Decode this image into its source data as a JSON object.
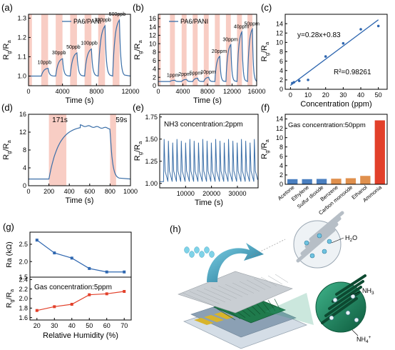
{
  "colors": {
    "line": "#3b6fa8",
    "shade": "#f8cdc4",
    "axis": "#000000",
    "humidity_line": "#2f67b0",
    "bar_blue": "#4a7fc0",
    "bar_orange": "#e0904d",
    "bar_red": "#e2402a",
    "fit_line": "#2f67b0",
    "points": "#2f67b0"
  },
  "chart_data": [
    {
      "panel": "(a)",
      "type": "line",
      "legend": "PA6/PANI",
      "xlabel": "Time (s)",
      "ylabel": "Rg/Ra",
      "xlim": [
        0,
        12000
      ],
      "ylim": [
        0.95,
        1.32
      ],
      "xticks": [
        0,
        4000,
        8000,
        12000
      ],
      "yticks": [
        1.0,
        1.1,
        1.2,
        1.3
      ],
      "annotations": [
        "10ppb",
        "30ppb",
        "50ppb",
        "100ppb",
        "300ppb",
        "500ppb"
      ],
      "peaks": [
        {
          "label": "10ppb",
          "start": 1500,
          "end": 2300,
          "peak": 1.04
        },
        {
          "label": "30ppb",
          "start": 3200,
          "end": 4000,
          "peak": 1.09
        },
        {
          "label": "50ppb",
          "start": 4900,
          "end": 5700,
          "peak": 1.12
        },
        {
          "label": "100ppb",
          "start": 6600,
          "end": 7400,
          "peak": 1.14
        },
        {
          "label": "300ppb",
          "start": 8200,
          "end": 9000,
          "peak": 1.26
        },
        {
          "label": "500ppb",
          "start": 9900,
          "end": 10700,
          "peak": 1.29
        }
      ],
      "shaded_regions": [
        [
          0,
          400
        ],
        [
          1500,
          2300
        ],
        [
          3200,
          4000
        ],
        [
          4900,
          5700
        ],
        [
          6600,
          7400
        ],
        [
          8200,
          9000
        ],
        [
          9900,
          10700
        ]
      ]
    },
    {
      "panel": "(b)",
      "type": "line",
      "legend": "PA6/PANI",
      "xlabel": "Time (s)",
      "ylabel": "Rg/Ra",
      "xlim": [
        0,
        16000
      ],
      "ylim": [
        0,
        17
      ],
      "xticks": [
        0,
        4000,
        8000,
        12000,
        16000
      ],
      "yticks": [
        0,
        2,
        4,
        6,
        8,
        10,
        12,
        14,
        16
      ],
      "annotations": [
        "1ppm",
        "2ppm",
        "5ppm",
        "10ppm",
        "20ppm",
        "30ppm",
        "40ppm",
        "50ppm"
      ],
      "peaks": [
        {
          "label": "1ppm",
          "start": 1900,
          "end": 2700,
          "peak": 1.3
        },
        {
          "label": "2ppm",
          "start": 3800,
          "end": 4600,
          "peak": 1.5
        },
        {
          "label": "5ppm",
          "start": 5600,
          "end": 6400,
          "peak": 1.8
        },
        {
          "label": "10ppm",
          "start": 7400,
          "end": 8200,
          "peak": 2.0
        },
        {
          "label": "20ppm",
          "start": 9200,
          "end": 10000,
          "peak": 7.0
        },
        {
          "label": "30ppm",
          "start": 11000,
          "end": 11800,
          "peak": 9.8
        },
        {
          "label": "40ppm",
          "start": 12800,
          "end": 13600,
          "peak": 12.8
        },
        {
          "label": "50ppm",
          "start": 14500,
          "end": 15300,
          "peak": 13.5
        }
      ],
      "shaded_regions": [
        [
          0,
          400
        ],
        [
          1900,
          2700
        ],
        [
          3800,
          4600
        ],
        [
          5600,
          6400
        ],
        [
          7400,
          8200
        ],
        [
          9200,
          10000
        ],
        [
          11000,
          11800
        ],
        [
          12800,
          13600
        ],
        [
          14500,
          15300
        ]
      ]
    },
    {
      "panel": "(c)",
      "type": "scatter",
      "xlabel": "Concentration (ppm)",
      "ylabel": "Rg/Ra",
      "xlim": [
        -3,
        55
      ],
      "ylim": [
        0,
        16
      ],
      "xticks": [
        0,
        10,
        20,
        30,
        40,
        50
      ],
      "yticks": [
        0,
        2,
        4,
        6,
        8,
        10,
        12,
        14
      ],
      "equation": "y=0.28x+0.83",
      "r2": "R²=0.98261",
      "points": [
        {
          "x": 1,
          "y": 1.3
        },
        {
          "x": 2,
          "y": 1.5
        },
        {
          "x": 5,
          "y": 1.8
        },
        {
          "x": 10,
          "y": 2.0
        },
        {
          "x": 20,
          "y": 7.0
        },
        {
          "x": 30,
          "y": 9.8
        },
        {
          "x": 40,
          "y": 12.8
        },
        {
          "x": 50,
          "y": 13.5
        }
      ],
      "fit": {
        "slope": 0.28,
        "intercept": 0.83
      }
    },
    {
      "panel": "(d)",
      "type": "line",
      "xlabel": "Time (s)",
      "ylabel": "Rg/Ra",
      "xlim": [
        0,
        1000
      ],
      "ylim": [
        0,
        16
      ],
      "xticks": [
        0,
        200,
        400,
        600,
        800,
        1000
      ],
      "yticks": [
        0,
        4,
        8,
        12,
        16
      ],
      "annotations": [
        "171s",
        "59s"
      ],
      "baseline": 1.5,
      "plateau": 13.5,
      "rise_start": 200,
      "rise_end": 371,
      "fall_start": 800,
      "fall_end": 859,
      "shaded_regions": [
        [
          200,
          371
        ],
        [
          800,
          859
        ]
      ]
    },
    {
      "panel": "(e)",
      "type": "line",
      "xlabel": "Time (s)",
      "ylabel": "Rg/Ra",
      "xlim": [
        0,
        38000
      ],
      "ylim": [
        0.95,
        1.78
      ],
      "xticks": [
        10000,
        20000,
        30000
      ],
      "yticks": [
        1.0,
        1.25,
        1.5,
        1.75
      ],
      "annotation": "NH3 concentration:2ppm",
      "cycles": 22,
      "cycle_min": 1.02,
      "cycle_max": 1.5
    },
    {
      "panel": "(f)",
      "type": "bar",
      "ylabel": "Rg/Ra",
      "annotation": "Gas concentration:50ppm",
      "ylim": [
        0,
        15
      ],
      "yticks": [
        0,
        2,
        4,
        6,
        8,
        10,
        12,
        14
      ],
      "categories": [
        "Acetone",
        "Ethylene",
        "Sulfur dioxide",
        "Benzene",
        "Carbon monoxide",
        "Ethanol",
        "Ammonia"
      ],
      "values": [
        1.1,
        1.1,
        1.15,
        1.2,
        1.3,
        1.8,
        13.7
      ]
    },
    {
      "panel": "(g)",
      "type": "line",
      "xlabel": "Relative Humidity (%)",
      "x": [
        20,
        30,
        40,
        50,
        60,
        70
      ],
      "xticks": [
        20,
        30,
        40,
        50,
        60,
        70
      ],
      "top": {
        "ylabel": "Ra (kΩ)",
        "values": [
          2.62,
          2.25,
          2.1,
          1.8,
          1.7,
          1.7
        ],
        "ylim": [
          1.55,
          2.85
        ],
        "yticks": [
          1.5,
          2.0,
          2.5
        ]
      },
      "bottom": {
        "ylabel": "Rg/Ra",
        "annotation": "Gas concentration:5ppm",
        "values": [
          1.75,
          1.83,
          1.88,
          2.08,
          2.1,
          2.15
        ],
        "ylim": [
          1.55,
          2.45
        ],
        "yticks": [
          1.6,
          1.8,
          2.0,
          2.2,
          2.4
        ]
      }
    }
  ],
  "panel_h": {
    "label": "(h)",
    "labels": [
      "H2O",
      "NH3",
      "NH4+"
    ]
  },
  "panel_labels": [
    "(a)",
    "(b)",
    "(c)",
    "(d)",
    "(e)",
    "(f)",
    "(g)",
    "(h)"
  ]
}
